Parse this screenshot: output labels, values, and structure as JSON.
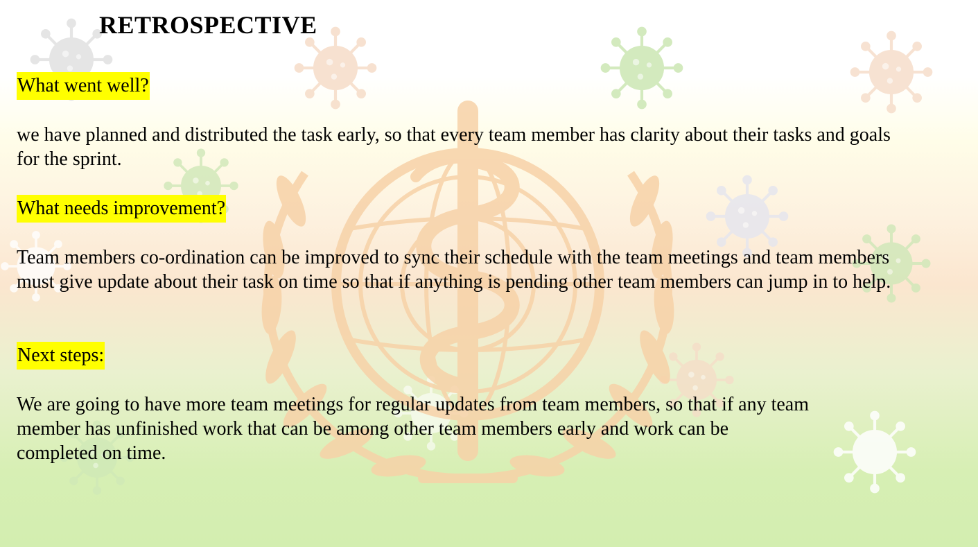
{
  "slide": {
    "title": "RETROSPECTIVE",
    "sections": [
      {
        "heading": "What went well?",
        "body": "we have planned and distributed the task early, so that every team member has clarity about their tasks and goals for the sprint."
      },
      {
        "heading": "What needs improvement?",
        "body": "Team members co-ordination can be improved to sync their schedule with the team meetings and team members must give update about their task on time so that if anything is pending other team members can jump in to help."
      },
      {
        "heading": "Next steps:",
        "body_lines": [
          "We are going to have more team meetings for regular updates from team members, so that if any team",
          "member has unfinished work that can be among other team members early and work can be",
          "completed on time."
        ]
      }
    ]
  },
  "colors": {
    "heading_highlight": "#ffff00",
    "emblem": "#f7d2a8",
    "virus_grey": "#e3e3e3",
    "virus_green": "#cfe8b8",
    "virus_peach": "#f6dcc8",
    "background_bottom": "#d3eeb0"
  },
  "background": {
    "emblem": "who-emblem-watermark",
    "decorations": [
      "virus-icon"
    ]
  }
}
